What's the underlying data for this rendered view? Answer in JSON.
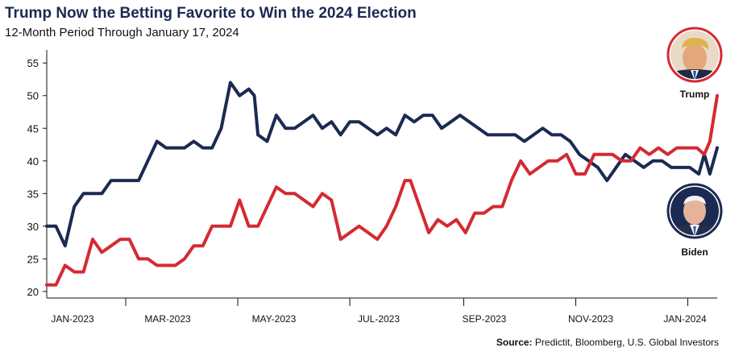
{
  "title": "Trump Now the Betting Favorite to Win the 2024 Election",
  "subtitle": "12-Month Period Through January 17, 2024",
  "source_label": "Source:",
  "source_text": "Predictit, Bloomberg, U.S. Global Investors",
  "candidates": {
    "trump": {
      "label": "Trump",
      "photo_icon": "trump-portrait-icon",
      "ring_color": "#d42a32"
    },
    "biden": {
      "label": "Biden",
      "photo_icon": "biden-portrait-icon",
      "ring_color": "#1b2a52"
    }
  },
  "chart_data": {
    "type": "line",
    "title": "Trump Now the Betting Favorite to Win the 2024 Election",
    "subtitle": "12-Month Period Through January 17, 2024",
    "x_range": [
      "2023-01-17",
      "2024-01-17"
    ],
    "x_ticks": [
      "JAN-2023",
      "MAR-2023",
      "MAY-2023",
      "JUL-2023",
      "SEP-2023",
      "NOV-2023",
      "JAN-2024"
    ],
    "x_tick_dates": [
      "2023-01-01",
      "2023-03-01",
      "2023-05-01",
      "2023-07-01",
      "2023-09-01",
      "2023-11-01",
      "2024-01-01"
    ],
    "ylim": [
      19,
      57
    ],
    "y_ticks": [
      20,
      25,
      30,
      35,
      40,
      45,
      50,
      55
    ],
    "grid": false,
    "series": [
      {
        "name": "Biden",
        "color": "#1b2a52",
        "points": [
          [
            "2023-01-17",
            30
          ],
          [
            "2023-01-22",
            30
          ],
          [
            "2023-01-27",
            27
          ],
          [
            "2023-02-01",
            33
          ],
          [
            "2023-02-06",
            35
          ],
          [
            "2023-02-11",
            35
          ],
          [
            "2023-02-16",
            35
          ],
          [
            "2023-02-21",
            37
          ],
          [
            "2023-02-26",
            37
          ],
          [
            "2023-03-03",
            37
          ],
          [
            "2023-03-08",
            37
          ],
          [
            "2023-03-13",
            40
          ],
          [
            "2023-03-18",
            43
          ],
          [
            "2023-03-23",
            42
          ],
          [
            "2023-03-28",
            42
          ],
          [
            "2023-04-02",
            42
          ],
          [
            "2023-04-07",
            43
          ],
          [
            "2023-04-12",
            42
          ],
          [
            "2023-04-17",
            42
          ],
          [
            "2023-04-22",
            45
          ],
          [
            "2023-04-27",
            52
          ],
          [
            "2023-05-02",
            50
          ],
          [
            "2023-05-07",
            51
          ],
          [
            "2023-05-10",
            50
          ],
          [
            "2023-05-12",
            44
          ],
          [
            "2023-05-17",
            43
          ],
          [
            "2023-05-22",
            47
          ],
          [
            "2023-05-27",
            45
          ],
          [
            "2023-06-01",
            45
          ],
          [
            "2023-06-06",
            46
          ],
          [
            "2023-06-11",
            47
          ],
          [
            "2023-06-16",
            45
          ],
          [
            "2023-06-21",
            46
          ],
          [
            "2023-06-26",
            44
          ],
          [
            "2023-07-01",
            46
          ],
          [
            "2023-07-06",
            46
          ],
          [
            "2023-07-11",
            45
          ],
          [
            "2023-07-16",
            44
          ],
          [
            "2023-07-21",
            45
          ],
          [
            "2023-07-26",
            44
          ],
          [
            "2023-07-31",
            47
          ],
          [
            "2023-08-05",
            46
          ],
          [
            "2023-08-10",
            47
          ],
          [
            "2023-08-15",
            47
          ],
          [
            "2023-08-20",
            45
          ],
          [
            "2023-08-25",
            46
          ],
          [
            "2023-08-30",
            47
          ],
          [
            "2023-09-04",
            46
          ],
          [
            "2023-09-09",
            45
          ],
          [
            "2023-09-14",
            44
          ],
          [
            "2023-09-19",
            44
          ],
          [
            "2023-09-24",
            44
          ],
          [
            "2023-09-29",
            44
          ],
          [
            "2023-10-04",
            43
          ],
          [
            "2023-10-09",
            44
          ],
          [
            "2023-10-14",
            45
          ],
          [
            "2023-10-19",
            44
          ],
          [
            "2023-10-24",
            44
          ],
          [
            "2023-10-29",
            43
          ],
          [
            "2023-11-03",
            41
          ],
          [
            "2023-11-08",
            40
          ],
          [
            "2023-11-13",
            39
          ],
          [
            "2023-11-18",
            37
          ],
          [
            "2023-11-23",
            39
          ],
          [
            "2023-11-28",
            41
          ],
          [
            "2023-12-03",
            40
          ],
          [
            "2023-12-08",
            39
          ],
          [
            "2023-12-13",
            40
          ],
          [
            "2023-12-18",
            40
          ],
          [
            "2023-12-23",
            39
          ],
          [
            "2023-12-28",
            39
          ],
          [
            "2024-01-02",
            39
          ],
          [
            "2024-01-07",
            38
          ],
          [
            "2024-01-10",
            41
          ],
          [
            "2024-01-13",
            38
          ],
          [
            "2024-01-17",
            42
          ]
        ]
      },
      {
        "name": "Trump",
        "color": "#d42a32",
        "points": [
          [
            "2023-01-17",
            21
          ],
          [
            "2023-01-22",
            21
          ],
          [
            "2023-01-27",
            24
          ],
          [
            "2023-02-01",
            23
          ],
          [
            "2023-02-06",
            23
          ],
          [
            "2023-02-11",
            28
          ],
          [
            "2023-02-16",
            26
          ],
          [
            "2023-02-21",
            27
          ],
          [
            "2023-02-26",
            28
          ],
          [
            "2023-03-03",
            28
          ],
          [
            "2023-03-08",
            25
          ],
          [
            "2023-03-13",
            25
          ],
          [
            "2023-03-18",
            24
          ],
          [
            "2023-03-23",
            24
          ],
          [
            "2023-03-28",
            24
          ],
          [
            "2023-04-02",
            25
          ],
          [
            "2023-04-07",
            27
          ],
          [
            "2023-04-12",
            27
          ],
          [
            "2023-04-17",
            30
          ],
          [
            "2023-04-22",
            30
          ],
          [
            "2023-04-27",
            30
          ],
          [
            "2023-05-02",
            34
          ],
          [
            "2023-05-07",
            30
          ],
          [
            "2023-05-12",
            30
          ],
          [
            "2023-05-17",
            33
          ],
          [
            "2023-05-22",
            36
          ],
          [
            "2023-05-27",
            35
          ],
          [
            "2023-06-01",
            35
          ],
          [
            "2023-06-06",
            34
          ],
          [
            "2023-06-11",
            33
          ],
          [
            "2023-06-16",
            35
          ],
          [
            "2023-06-21",
            34
          ],
          [
            "2023-06-26",
            28
          ],
          [
            "2023-07-01",
            29
          ],
          [
            "2023-07-06",
            30
          ],
          [
            "2023-07-11",
            29
          ],
          [
            "2023-07-16",
            28
          ],
          [
            "2023-07-21",
            30
          ],
          [
            "2023-07-26",
            33
          ],
          [
            "2023-07-31",
            37
          ],
          [
            "2023-08-03",
            37
          ],
          [
            "2023-08-08",
            33
          ],
          [
            "2023-08-13",
            29
          ],
          [
            "2023-08-18",
            31
          ],
          [
            "2023-08-23",
            30
          ],
          [
            "2023-08-28",
            31
          ],
          [
            "2023-09-02",
            29
          ],
          [
            "2023-09-07",
            32
          ],
          [
            "2023-09-12",
            32
          ],
          [
            "2023-09-17",
            33
          ],
          [
            "2023-09-22",
            33
          ],
          [
            "2023-09-27",
            37
          ],
          [
            "2023-10-02",
            40
          ],
          [
            "2023-10-07",
            38
          ],
          [
            "2023-10-12",
            39
          ],
          [
            "2023-10-17",
            40
          ],
          [
            "2023-10-22",
            40
          ],
          [
            "2023-10-27",
            41
          ],
          [
            "2023-11-01",
            38
          ],
          [
            "2023-11-06",
            38
          ],
          [
            "2023-11-11",
            41
          ],
          [
            "2023-11-16",
            41
          ],
          [
            "2023-11-21",
            41
          ],
          [
            "2023-11-26",
            40
          ],
          [
            "2023-12-01",
            40
          ],
          [
            "2023-12-06",
            42
          ],
          [
            "2023-12-11",
            41
          ],
          [
            "2023-12-16",
            42
          ],
          [
            "2023-12-21",
            41
          ],
          [
            "2023-12-26",
            42
          ],
          [
            "2024-01-01",
            42
          ],
          [
            "2024-01-06",
            42
          ],
          [
            "2024-01-10",
            41
          ],
          [
            "2024-01-13",
            43
          ],
          [
            "2024-01-17",
            50
          ]
        ]
      }
    ]
  }
}
